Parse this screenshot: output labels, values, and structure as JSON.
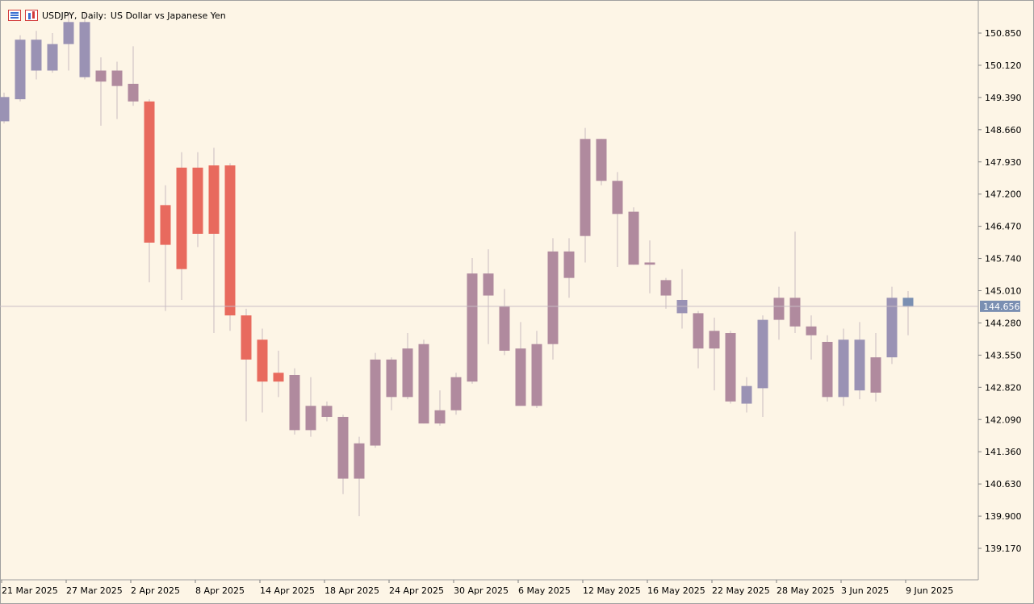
{
  "header": {
    "symbol": "USDJPY",
    "timeframe": "Daily",
    "description": "US Dollar vs Japanese Yen",
    "icons": [
      "quick-list-icon",
      "chart-type-icon"
    ]
  },
  "colors": {
    "background": "#fdf5e6",
    "bear": "#e86a5e",
    "bull": "#9a92b4",
    "neutral": "#b08a9e",
    "current_price_label": "#7a8fb2"
  },
  "chart_data": {
    "type": "candlestick",
    "symbol": "USDJPY",
    "timeframe": "Daily",
    "ylim": [
      138.75,
      151.4
    ],
    "yticks": [
      "150.850",
      "150.120",
      "149.390",
      "148.660",
      "147.930",
      "147.200",
      "146.470",
      "145.740",
      "145.010",
      "144.280",
      "143.550",
      "142.820",
      "142.090",
      "141.360",
      "140.630",
      "139.900",
      "139.170"
    ],
    "xticks": [
      "21 Mar 2025",
      "27 Mar 2025",
      "2 Apr 2025",
      "8 Apr 2025",
      "14 Apr 2025",
      "18 Apr 2025",
      "24 Apr 2025",
      "30 Apr 2025",
      "6 May 2025",
      "12 May 2025",
      "16 May 2025",
      "22 May 2025",
      "28 May 2025",
      "3 Jun 2025",
      "9 Jun 2025"
    ],
    "current_price": "144.656",
    "candles": [
      {
        "o": 149.4,
        "h": 149.5,
        "l": 148.8,
        "c": 148.85,
        "col": "bull"
      },
      {
        "o": 149.35,
        "h": 150.8,
        "l": 149.3,
        "c": 150.7,
        "col": "bull"
      },
      {
        "o": 150.0,
        "h": 150.9,
        "l": 149.8,
        "c": 150.7,
        "col": "bull"
      },
      {
        "o": 150.0,
        "h": 150.85,
        "l": 149.95,
        "c": 150.6,
        "col": "bull"
      },
      {
        "o": 150.6,
        "h": 151.3,
        "l": 150.0,
        "c": 151.1,
        "col": "bull"
      },
      {
        "o": 151.1,
        "h": 151.3,
        "l": 149.8,
        "c": 149.85,
        "col": "bull"
      },
      {
        "o": 150.0,
        "h": 150.3,
        "l": 148.75,
        "c": 149.75,
        "col": "neutral"
      },
      {
        "o": 150.0,
        "h": 150.2,
        "l": 148.9,
        "c": 149.65,
        "col": "neutral"
      },
      {
        "o": 149.7,
        "h": 150.55,
        "l": 149.2,
        "c": 149.3,
        "col": "neutral"
      },
      {
        "o": 149.3,
        "h": 149.35,
        "l": 145.2,
        "c": 146.1,
        "col": "bear"
      },
      {
        "o": 146.95,
        "h": 147.4,
        "l": 144.55,
        "c": 146.05,
        "col": "bear"
      },
      {
        "o": 145.5,
        "h": 148.15,
        "l": 144.8,
        "c": 147.8,
        "col": "bear"
      },
      {
        "o": 147.8,
        "h": 148.15,
        "l": 146.0,
        "c": 146.3,
        "col": "bear"
      },
      {
        "o": 146.3,
        "h": 148.25,
        "l": 144.05,
        "c": 147.85,
        "col": "bear"
      },
      {
        "o": 147.85,
        "h": 147.9,
        "l": 144.1,
        "c": 144.45,
        "col": "bear"
      },
      {
        "o": 144.45,
        "h": 144.6,
        "l": 142.05,
        "c": 143.45,
        "col": "bear"
      },
      {
        "o": 143.9,
        "h": 144.15,
        "l": 142.25,
        "c": 142.95,
        "col": "bear"
      },
      {
        "o": 143.15,
        "h": 143.65,
        "l": 142.6,
        "c": 142.95,
        "col": "bear"
      },
      {
        "o": 143.1,
        "h": 143.25,
        "l": 141.75,
        "c": 141.85,
        "col": "neutral"
      },
      {
        "o": 142.4,
        "h": 143.05,
        "l": 141.7,
        "c": 141.85,
        "col": "neutral"
      },
      {
        "o": 142.4,
        "h": 142.5,
        "l": 142.05,
        "c": 142.15,
        "col": "neutral"
      },
      {
        "o": 142.15,
        "h": 142.2,
        "l": 140.4,
        "c": 140.75,
        "col": "neutral"
      },
      {
        "o": 141.55,
        "h": 141.7,
        "l": 139.9,
        "c": 140.75,
        "col": "neutral"
      },
      {
        "o": 141.5,
        "h": 143.6,
        "l": 141.45,
        "c": 143.45,
        "col": "neutral"
      },
      {
        "o": 143.45,
        "h": 143.5,
        "l": 142.3,
        "c": 142.6,
        "col": "neutral"
      },
      {
        "o": 142.6,
        "h": 144.05,
        "l": 142.55,
        "c": 143.7,
        "col": "neutral"
      },
      {
        "o": 143.8,
        "h": 143.9,
        "l": 142.0,
        "c": 142.0,
        "col": "neutral"
      },
      {
        "o": 142.3,
        "h": 142.75,
        "l": 141.95,
        "c": 142.0,
        "col": "neutral"
      },
      {
        "o": 142.3,
        "h": 143.15,
        "l": 142.2,
        "c": 143.05,
        "col": "neutral"
      },
      {
        "o": 142.95,
        "h": 145.75,
        "l": 142.9,
        "c": 145.4,
        "col": "neutral"
      },
      {
        "o": 145.4,
        "h": 145.95,
        "l": 143.8,
        "c": 144.9,
        "col": "neutral"
      },
      {
        "o": 144.65,
        "h": 145.05,
        "l": 143.55,
        "c": 143.65,
        "col": "neutral"
      },
      {
        "o": 143.7,
        "h": 144.3,
        "l": 142.4,
        "c": 142.4,
        "col": "neutral"
      },
      {
        "o": 142.4,
        "h": 144.1,
        "l": 142.35,
        "c": 143.8,
        "col": "neutral"
      },
      {
        "o": 143.8,
        "h": 146.2,
        "l": 143.45,
        "c": 145.9,
        "col": "neutral"
      },
      {
        "o": 145.9,
        "h": 146.2,
        "l": 144.85,
        "c": 145.3,
        "col": "neutral"
      },
      {
        "o": 146.25,
        "h": 148.7,
        "l": 145.65,
        "c": 148.45,
        "col": "neutral"
      },
      {
        "o": 148.45,
        "h": 148.45,
        "l": 147.4,
        "c": 147.5,
        "col": "neutral"
      },
      {
        "o": 147.5,
        "h": 147.7,
        "l": 145.55,
        "c": 146.75,
        "col": "neutral"
      },
      {
        "o": 146.8,
        "h": 146.9,
        "l": 145.6,
        "c": 145.6,
        "col": "neutral"
      },
      {
        "o": 145.6,
        "h": 146.15,
        "l": 144.95,
        "c": 145.65,
        "col": "neutral"
      },
      {
        "o": 145.25,
        "h": 145.3,
        "l": 144.6,
        "c": 144.9,
        "col": "neutral"
      },
      {
        "o": 144.8,
        "h": 145.5,
        "l": 144.15,
        "c": 144.5,
        "col": "bull"
      },
      {
        "o": 144.5,
        "h": 144.55,
        "l": 143.25,
        "c": 143.7,
        "col": "neutral"
      },
      {
        "o": 144.1,
        "h": 144.4,
        "l": 142.75,
        "c": 143.7,
        "col": "neutral"
      },
      {
        "o": 144.05,
        "h": 144.1,
        "l": 142.45,
        "c": 142.5,
        "col": "neutral"
      },
      {
        "o": 142.45,
        "h": 143.05,
        "l": 142.25,
        "c": 142.85,
        "col": "bull"
      },
      {
        "o": 142.8,
        "h": 144.45,
        "l": 142.15,
        "c": 144.35,
        "col": "bull"
      },
      {
        "o": 144.35,
        "h": 145.1,
        "l": 143.9,
        "c": 144.85,
        "col": "neutral"
      },
      {
        "o": 144.85,
        "h": 146.35,
        "l": 144.05,
        "c": 144.2,
        "col": "neutral"
      },
      {
        "o": 144.2,
        "h": 144.45,
        "l": 143.45,
        "c": 144.0,
        "col": "neutral"
      },
      {
        "o": 143.85,
        "h": 144.0,
        "l": 142.5,
        "c": 142.6,
        "col": "neutral"
      },
      {
        "o": 143.9,
        "h": 144.15,
        "l": 142.4,
        "c": 142.6,
        "col": "bull"
      },
      {
        "o": 143.9,
        "h": 144.3,
        "l": 142.55,
        "c": 142.75,
        "col": "bull"
      },
      {
        "o": 143.5,
        "h": 144.05,
        "l": 142.5,
        "c": 142.7,
        "col": "neutral"
      },
      {
        "o": 143.5,
        "h": 145.1,
        "l": 143.35,
        "c": 144.85,
        "col": "bull"
      },
      {
        "o": 144.65,
        "h": 145.0,
        "l": 144.0,
        "c": 144.85,
        "col": "blue"
      }
    ]
  }
}
